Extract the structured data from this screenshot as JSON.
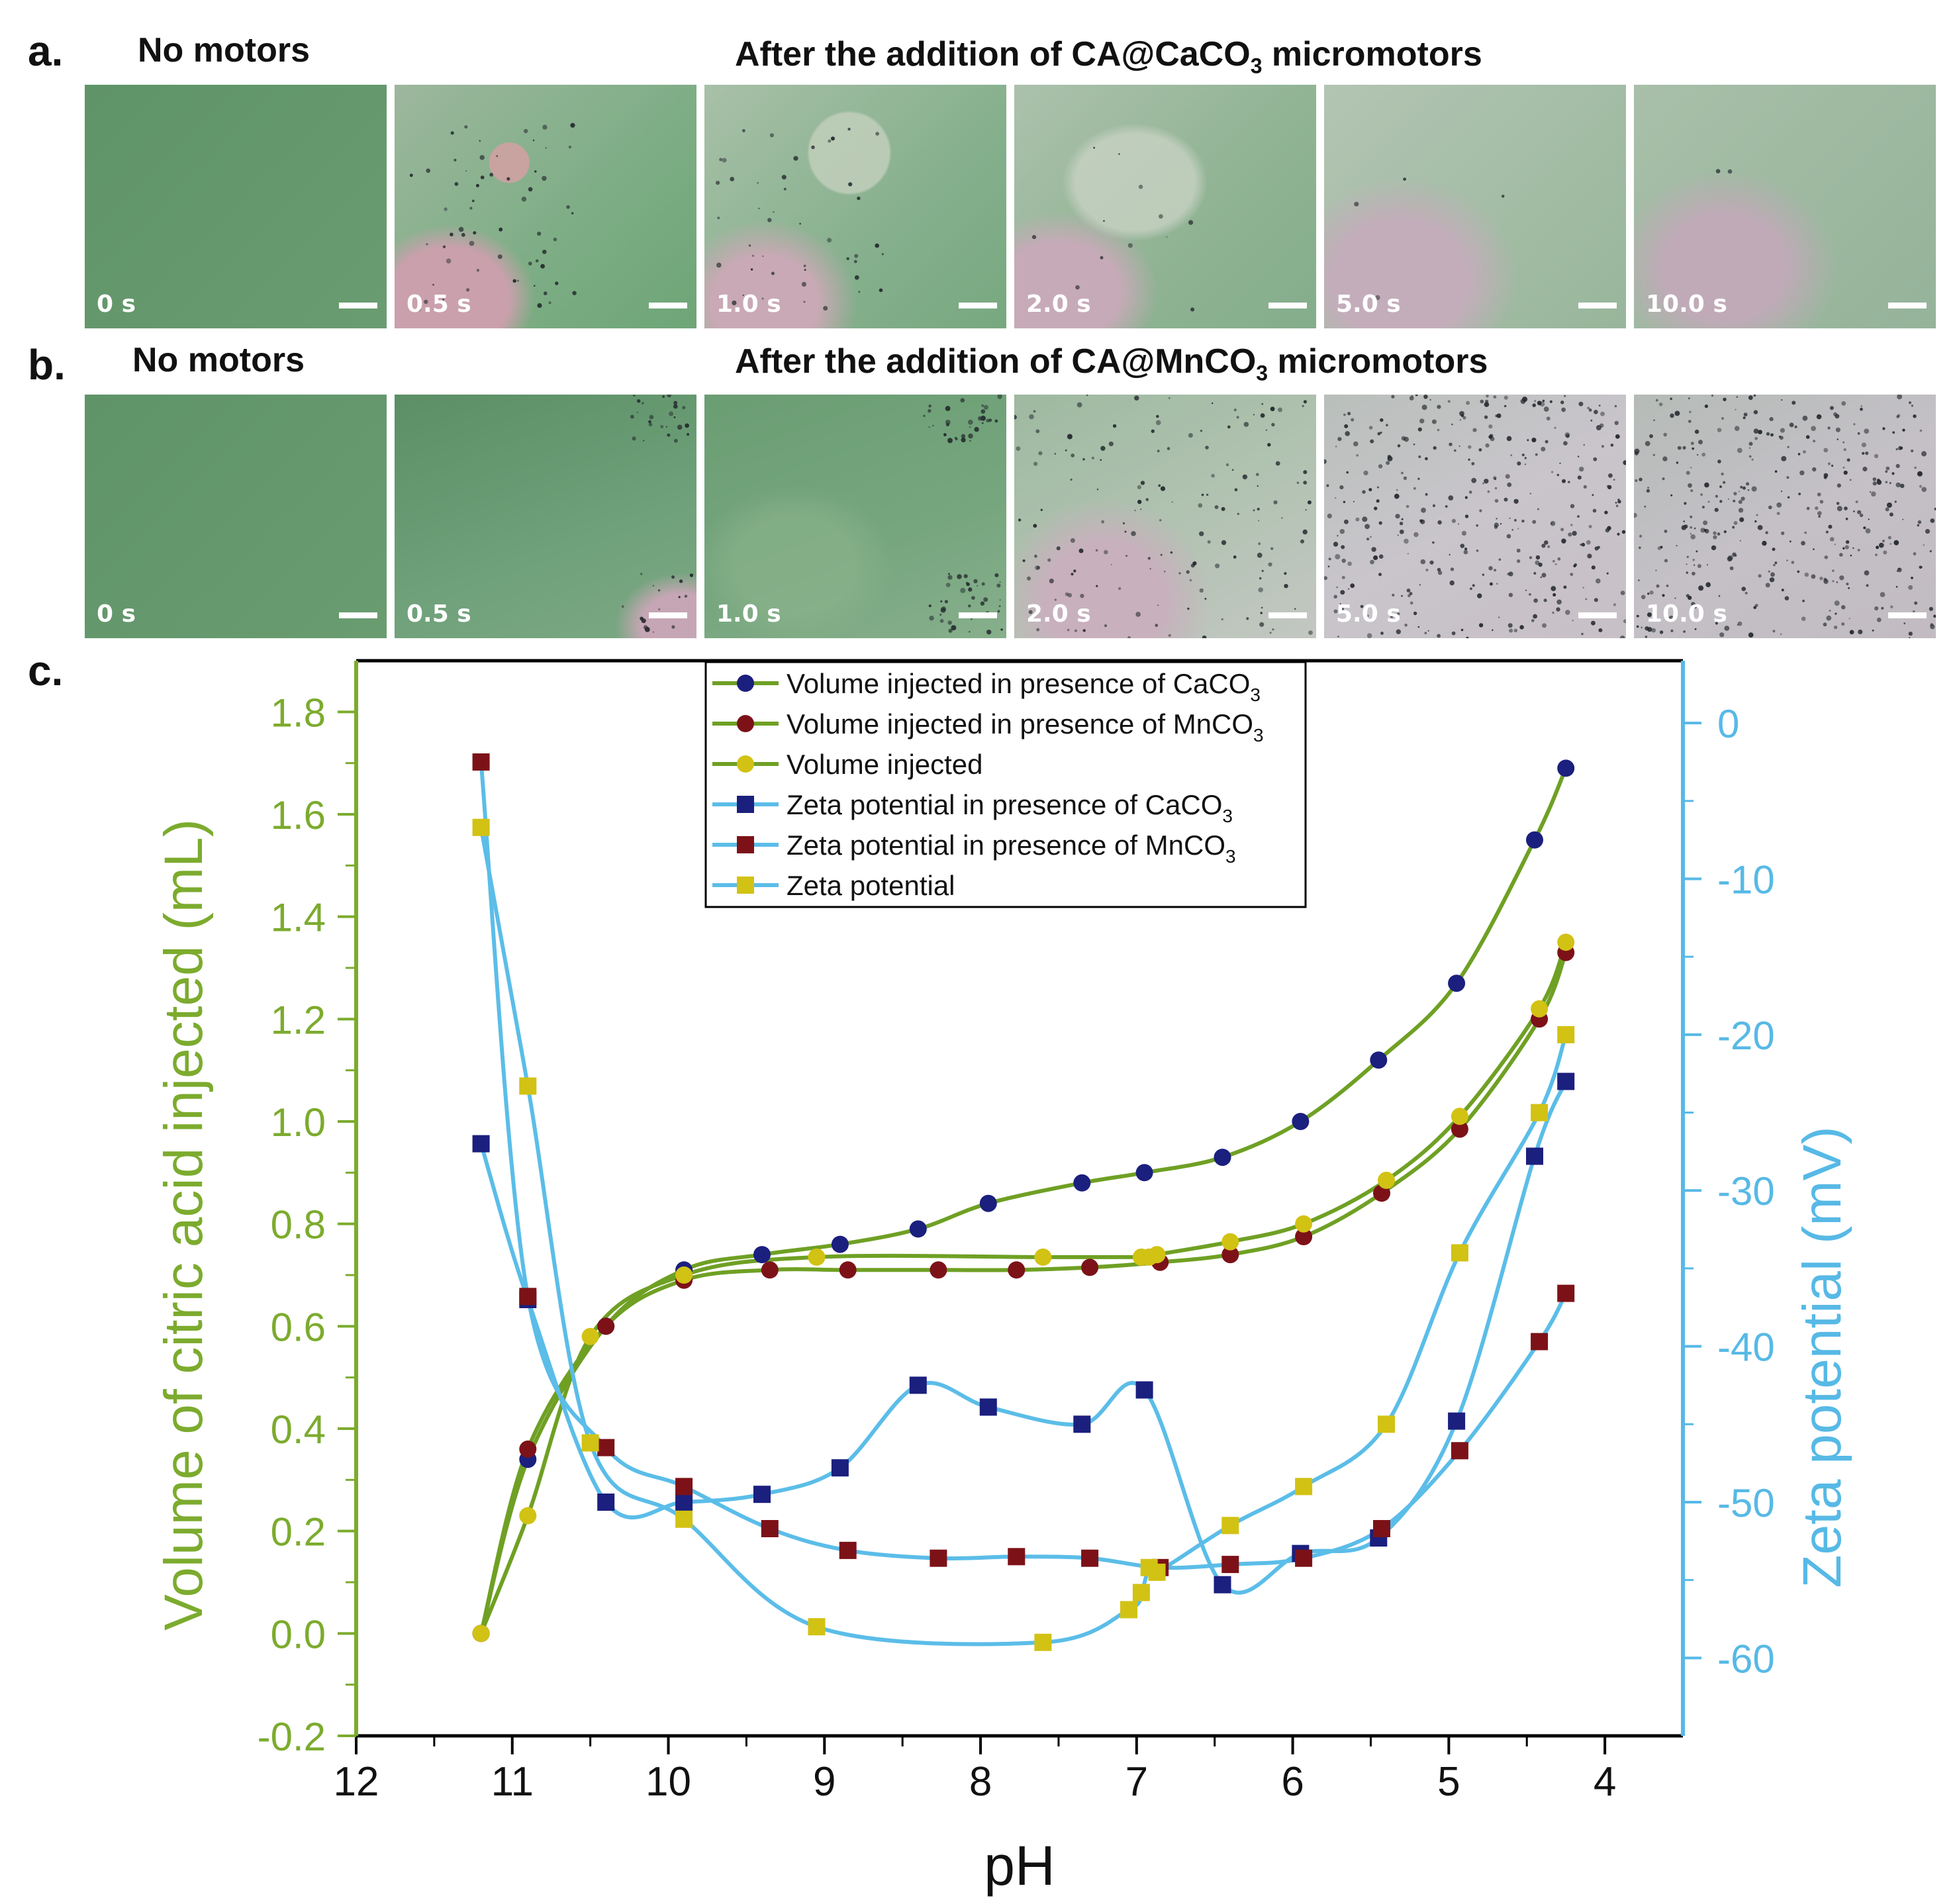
{
  "panels": {
    "a": {
      "letter": "a.",
      "control_title": "No motors",
      "title_prefix": "After the addition of CA@CaCO",
      "title_sub": "3",
      "title_suffix": " micromotors",
      "frames": [
        "0 s",
        "0.5 s",
        "1.0 s",
        "2.0 s",
        "5.0 s",
        "10.0 s"
      ]
    },
    "b": {
      "letter": "b.",
      "control_title": "No motors",
      "title_prefix": "After the addition of CA@MnCO",
      "title_sub": "3",
      "title_suffix": " micromotors",
      "frames": [
        "0 s",
        "0.5 s",
        "1.0 s",
        "2.0 s",
        "5.0 s",
        "10.0 s"
      ]
    },
    "c": {
      "letter": "c."
    }
  },
  "chart_data": {
    "type": "scatter",
    "title": "",
    "xlabel": "pH",
    "ylabel": "Volume of citric acid injected (mL)",
    "y2label": "Zeta potential (mV)",
    "xlim": [
      12,
      3.5
    ],
    "ylim": [
      -0.2,
      1.9
    ],
    "y2lim": [
      -65,
      4
    ],
    "xticks": [
      "12",
      "11",
      "10",
      "9",
      "8",
      "7",
      "6",
      "5",
      "4"
    ],
    "yticks": [
      "-0.2",
      "0.0",
      "0.2",
      "0.4",
      "0.6",
      "0.8",
      "1.0",
      "1.2",
      "1.4",
      "1.6",
      "1.8"
    ],
    "y2ticks": [
      "0",
      "-10",
      "-20",
      "-30",
      "-40",
      "-50",
      "-60"
    ],
    "legend_position": "top-center",
    "colors": {
      "left_axis": "#7cab2e",
      "right_axis": "#57b9e6",
      "volume_line": "#6fa024",
      "zeta_line": "#5bbde8",
      "caco3_marker": "#1b1f7e",
      "mnco3_marker": "#7c1218",
      "control_marker": "#d2c214"
    },
    "series": [
      {
        "name": "Volume injected in presence of CaCO",
        "sub": "3",
        "axis": "left",
        "marker": "circle",
        "color": "#1b1f7e",
        "x": [
          11.2,
          10.9,
          10.4,
          9.9,
          9.4,
          8.9,
          8.4,
          7.95,
          7.35,
          6.95,
          6.45,
          5.95,
          5.45,
          4.95,
          4.45,
          4.25
        ],
        "y": [
          0.0,
          0.34,
          0.6,
          0.71,
          0.74,
          0.76,
          0.79,
          0.84,
          0.88,
          0.9,
          0.93,
          1.0,
          1.12,
          1.27,
          1.55,
          1.69
        ]
      },
      {
        "name": "Volume injected in presence of MnCO",
        "sub": "3",
        "axis": "left",
        "marker": "circle",
        "color": "#7c1218",
        "x": [
          11.2,
          10.9,
          10.4,
          9.9,
          9.35,
          8.85,
          8.27,
          7.77,
          7.3,
          6.85,
          6.4,
          5.93,
          5.43,
          4.93,
          4.42,
          4.25
        ],
        "y": [
          0.0,
          0.36,
          0.6,
          0.69,
          0.71,
          0.71,
          0.71,
          0.71,
          0.715,
          0.725,
          0.74,
          0.775,
          0.86,
          0.985,
          1.2,
          1.33
        ]
      },
      {
        "name": "Volume injected",
        "axis": "left",
        "marker": "circle",
        "color": "#d2c214",
        "x": [
          11.2,
          10.9,
          10.5,
          9.9,
          9.05,
          7.6,
          6.97,
          6.92,
          6.87,
          6.4,
          5.93,
          5.4,
          4.93,
          4.42,
          4.25
        ],
        "y": [
          0.0,
          0.23,
          0.58,
          0.7,
          0.735,
          0.735,
          0.735,
          0.735,
          0.74,
          0.765,
          0.8,
          0.885,
          1.01,
          1.22,
          1.35
        ]
      },
      {
        "name": "Zeta potential in presence of CaCO",
        "sub": "3",
        "axis": "right",
        "marker": "square",
        "color": "#1b1f7e",
        "x": [
          11.2,
          10.9,
          10.4,
          9.9,
          9.4,
          8.9,
          8.4,
          7.95,
          7.35,
          6.95,
          6.45,
          5.95,
          5.45,
          4.95,
          4.45,
          4.25
        ],
        "y": [
          -27.0,
          -37.0,
          -50.0,
          -50.0,
          -49.5,
          -47.8,
          -42.5,
          -43.9,
          -45.0,
          -42.8,
          -55.3,
          -53.3,
          -52.3,
          -44.8,
          -27.8,
          -23.0
        ]
      },
      {
        "name": "Zeta potential in presence of MnCO",
        "sub": "3",
        "axis": "right",
        "marker": "square",
        "color": "#7c1218",
        "x": [
          11.2,
          10.9,
          10.4,
          9.9,
          9.35,
          8.85,
          8.27,
          7.77,
          7.3,
          6.85,
          6.4,
          5.93,
          5.43,
          4.93,
          4.42,
          4.25
        ],
        "y": [
          -2.5,
          -36.8,
          -46.5,
          -49.0,
          -51.7,
          -53.1,
          -53.6,
          -53.5,
          -53.6,
          -54.2,
          -54.0,
          -53.6,
          -51.7,
          -46.7,
          -39.7,
          -36.6
        ]
      },
      {
        "name": "Zeta potential",
        "axis": "right",
        "marker": "square",
        "color": "#d2c214",
        "x": [
          11.2,
          10.9,
          10.5,
          9.9,
          9.05,
          7.6,
          7.05,
          6.97,
          6.92,
          6.87,
          6.4,
          5.93,
          5.4,
          4.93,
          4.42,
          4.25
        ],
        "y": [
          -6.7,
          -23.3,
          -46.2,
          -51.1,
          -58.0,
          -59.0,
          -56.9,
          -55.8,
          -54.2,
          -54.5,
          -51.5,
          -49.0,
          -45.0,
          -34.0,
          -25.0,
          -20.0
        ]
      }
    ]
  }
}
